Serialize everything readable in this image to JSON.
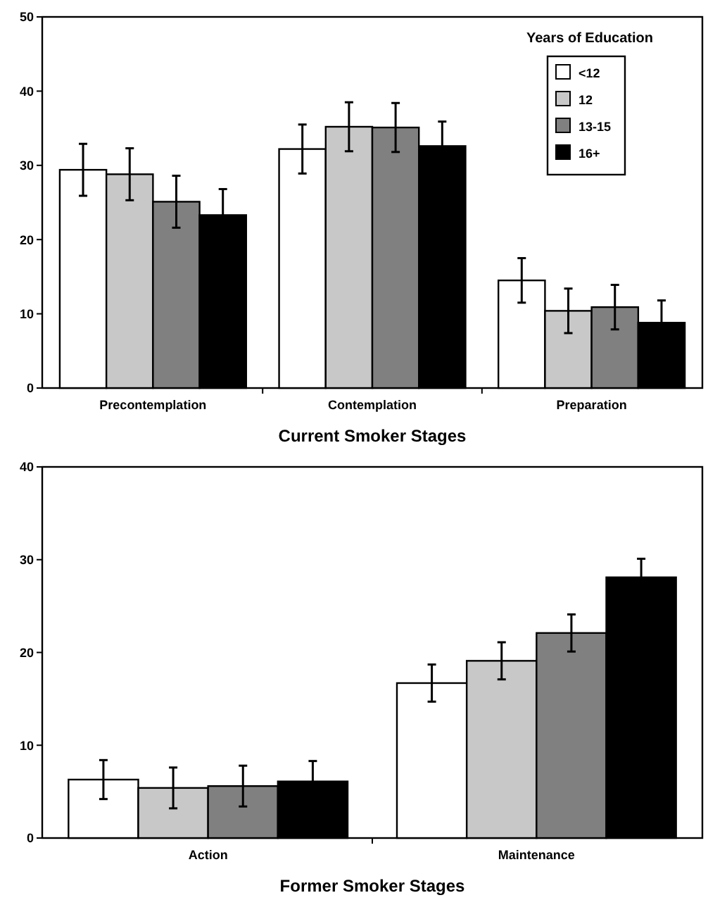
{
  "chart_data": [
    {
      "type": "bar",
      "xlabel": "Current Smoker Stages",
      "legend_title": "Years of Education",
      "legend": "top right",
      "grid": false,
      "categories": [
        "Precontemplation",
        "Contemplation",
        "Preparation"
      ],
      "ylim": [
        0,
        50
      ],
      "yticks": [
        0,
        10,
        20,
        30,
        40,
        50
      ],
      "series": [
        {
          "name": "<12",
          "color": "#ffffff",
          "values": [
            29.4,
            32.2,
            14.5
          ],
          "errors": [
            3.5,
            3.3,
            3
          ]
        },
        {
          "name": "12",
          "color": "#c8c8c8",
          "values": [
            28.8,
            35.2,
            10.4
          ],
          "errors": [
            3.5,
            3.3,
            3
          ]
        },
        {
          "name": "13-15",
          "color": "#808080",
          "values": [
            25.1,
            35.1,
            10.9
          ],
          "errors": [
            3.5,
            3.3,
            3
          ]
        },
        {
          "name": "16+",
          "color": "#000000",
          "values": [
            23.3,
            32.6,
            8.8
          ],
          "errors": [
            3.5,
            3.3,
            3
          ]
        }
      ]
    },
    {
      "type": "bar",
      "xlabel": "Former Smoker Stages",
      "legend": false,
      "grid": false,
      "categories": [
        "Action",
        "Maintenance"
      ],
      "ylim": [
        0,
        40
      ],
      "yticks": [
        0,
        10,
        20,
        30,
        40
      ],
      "series": [
        {
          "color": "#ffffff",
          "values": [
            6.3,
            16.7
          ],
          "errors": [
            2.1,
            2
          ]
        },
        {
          "color": "#c8c8c8",
          "values": [
            5.4,
            19.1
          ],
          "errors": [
            2.2,
            2
          ]
        },
        {
          "color": "#808080",
          "values": [
            5.6,
            22.1
          ],
          "errors": [
            2.2,
            2
          ]
        },
        {
          "color": "#000000",
          "values": [
            6.1,
            28.1
          ],
          "errors": [
            2.2,
            2
          ]
        }
      ]
    }
  ]
}
